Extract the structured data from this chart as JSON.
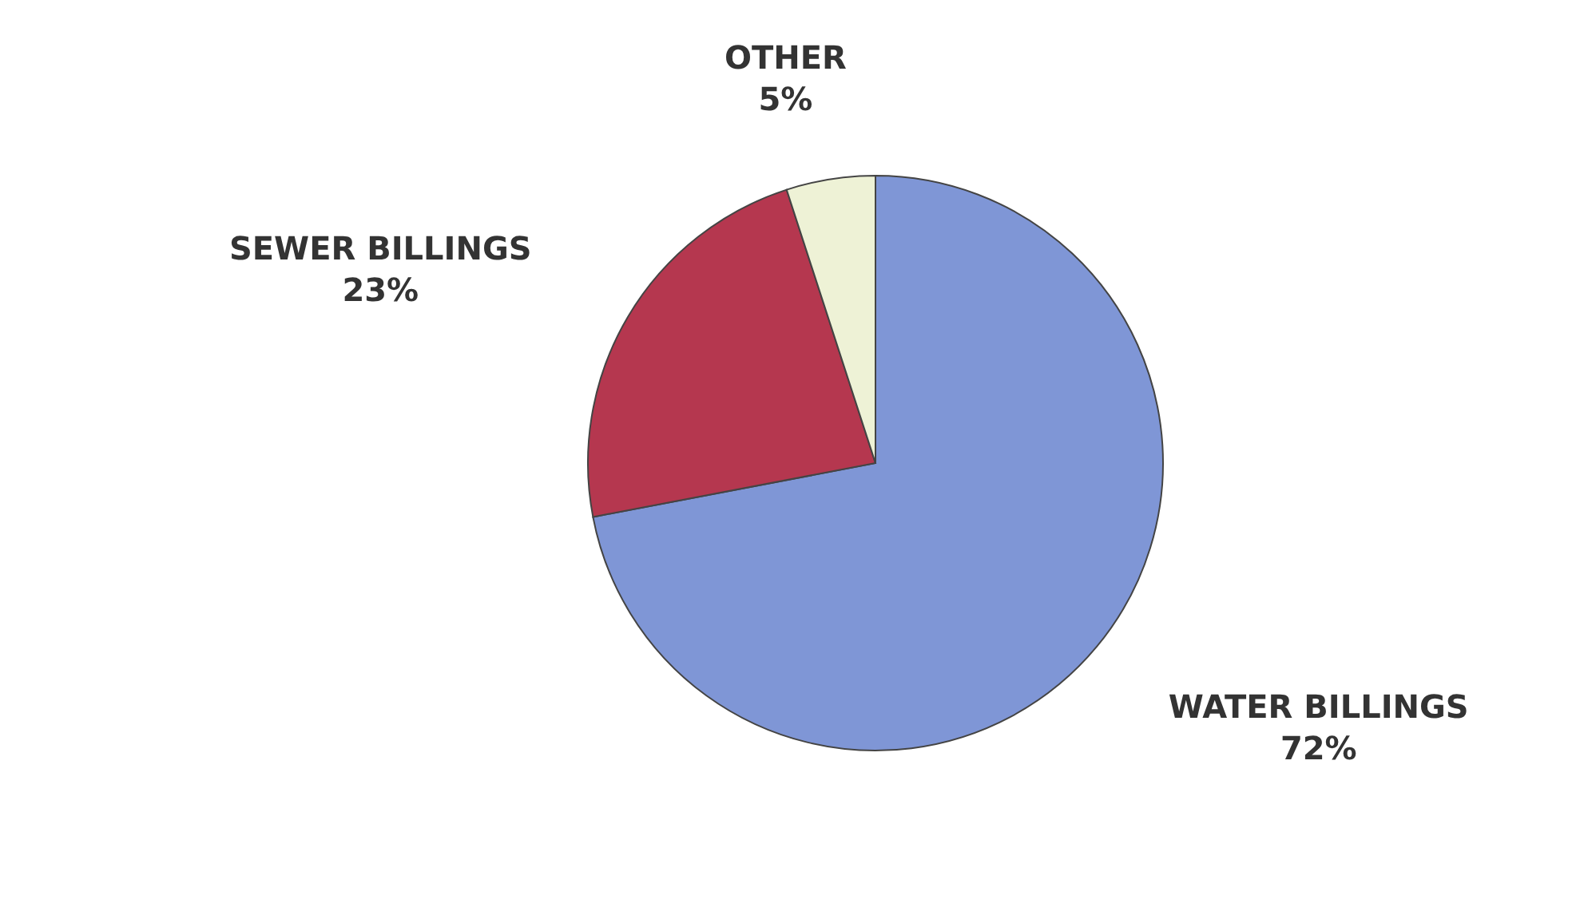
{
  "chart_data": {
    "type": "pie",
    "categories": [
      "WATER BILLINGS",
      "SEWER BILLINGS",
      "OTHER"
    ],
    "values": [
      72,
      23,
      5
    ],
    "value_labels": [
      "72%",
      "23%",
      "5%"
    ],
    "colors": [
      "#7f96d6",
      "#b5374f",
      "#eef2d6"
    ]
  }
}
